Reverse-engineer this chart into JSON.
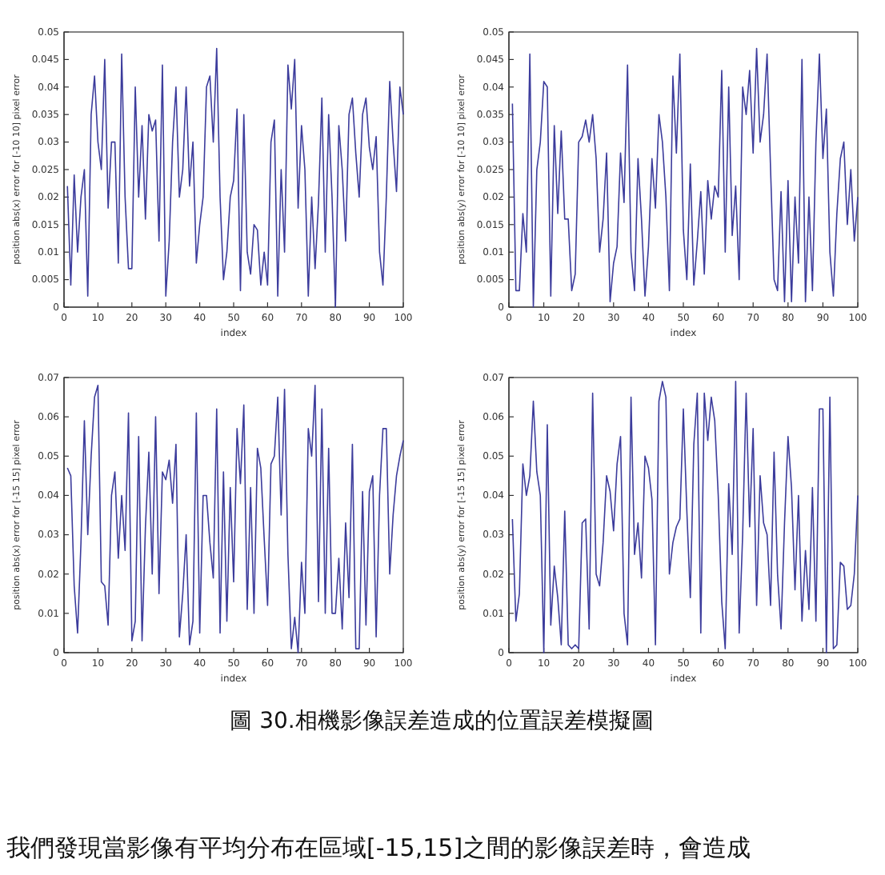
{
  "chart_data": [
    {
      "type": "line",
      "x": [
        1,
        2,
        3,
        4,
        5,
        6,
        7,
        8,
        9,
        10,
        11,
        12,
        13,
        14,
        15,
        16,
        17,
        18,
        19,
        20,
        21,
        22,
        23,
        24,
        25,
        26,
        27,
        28,
        29,
        30,
        31,
        32,
        33,
        34,
        35,
        36,
        37,
        38,
        39,
        40,
        41,
        42,
        43,
        44,
        45,
        46,
        47,
        48,
        49,
        50,
        51,
        52,
        53,
        54,
        55,
        56,
        57,
        58,
        59,
        60,
        61,
        62,
        63,
        64,
        65,
        66,
        67,
        68,
        69,
        70,
        71,
        72,
        73,
        74,
        75,
        76,
        77,
        78,
        79,
        80,
        81,
        82,
        83,
        84,
        85,
        86,
        87,
        88,
        89,
        90,
        91,
        92,
        93,
        94,
        95,
        96,
        97,
        98,
        99,
        100
      ],
      "xlabel": "index",
      "ylabel": "position abs(x) error for [-10 10] pixel error",
      "xlim": [
        0,
        100
      ],
      "xticks": [
        0,
        10,
        20,
        30,
        40,
        50,
        60,
        70,
        80,
        90,
        100
      ],
      "ylim": [
        0,
        0.05
      ],
      "yticks": [
        0,
        0.005,
        0.01,
        0.015,
        0.02,
        0.025,
        0.03,
        0.035,
        0.04,
        0.045,
        0.05
      ],
      "series": [
        {
          "color": "#3c3c9c",
          "values": [
            0.022,
            0.004,
            0.024,
            0.01,
            0.02,
            0.025,
            0.002,
            0.035,
            0.042,
            0.03,
            0.025,
            0.045,
            0.018,
            0.03,
            0.03,
            0.008,
            0.046,
            0.02,
            0.007,
            0.007,
            0.04,
            0.02,
            0.033,
            0.016,
            0.035,
            0.032,
            0.034,
            0.012,
            0.044,
            0.002,
            0.012,
            0.03,
            0.04,
            0.02,
            0.025,
            0.04,
            0.022,
            0.03,
            0.008,
            0.015,
            0.02,
            0.04,
            0.042,
            0.03,
            0.047,
            0.02,
            0.005,
            0.01,
            0.02,
            0.023,
            0.036,
            0.003,
            0.035,
            0.01,
            0.006,
            0.015,
            0.014,
            0.004,
            0.01,
            0.004,
            0.03,
            0.034,
            0.002,
            0.025,
            0.01,
            0.044,
            0.036,
            0.045,
            0.018,
            0.033,
            0.025,
            0.002,
            0.02,
            0.007,
            0.019,
            0.038,
            0.01,
            0.035,
            0.02,
            0.0,
            0.033,
            0.025,
            0.012,
            0.035,
            0.038,
            0.028,
            0.02,
            0.035,
            0.038,
            0.029,
            0.025,
            0.031,
            0.01,
            0.004,
            0.02,
            0.041,
            0.03,
            0.021,
            0.04,
            0.035
          ]
        }
      ]
    },
    {
      "type": "line",
      "x": [
        1,
        2,
        3,
        4,
        5,
        6,
        7,
        8,
        9,
        10,
        11,
        12,
        13,
        14,
        15,
        16,
        17,
        18,
        19,
        20,
        21,
        22,
        23,
        24,
        25,
        26,
        27,
        28,
        29,
        30,
        31,
        32,
        33,
        34,
        35,
        36,
        37,
        38,
        39,
        40,
        41,
        42,
        43,
        44,
        45,
        46,
        47,
        48,
        49,
        50,
        51,
        52,
        53,
        54,
        55,
        56,
        57,
        58,
        59,
        60,
        61,
        62,
        63,
        64,
        65,
        66,
        67,
        68,
        69,
        70,
        71,
        72,
        73,
        74,
        75,
        76,
        77,
        78,
        79,
        80,
        81,
        82,
        83,
        84,
        85,
        86,
        87,
        88,
        89,
        90,
        91,
        92,
        93,
        94,
        95,
        96,
        97,
        98,
        99,
        100
      ],
      "xlabel": "index",
      "ylabel": "position abs(y) error for [-10 10] pixel error",
      "xlim": [
        0,
        100
      ],
      "xticks": [
        0,
        10,
        20,
        30,
        40,
        50,
        60,
        70,
        80,
        90,
        100
      ],
      "ylim": [
        0,
        0.05
      ],
      "yticks": [
        0,
        0.005,
        0.01,
        0.015,
        0.02,
        0.025,
        0.03,
        0.035,
        0.04,
        0.045,
        0.05
      ],
      "series": [
        {
          "color": "#3c3c9c",
          "values": [
            0.037,
            0.003,
            0.003,
            0.017,
            0.01,
            0.046,
            0.0,
            0.025,
            0.03,
            0.041,
            0.04,
            0.002,
            0.033,
            0.017,
            0.032,
            0.016,
            0.016,
            0.003,
            0.006,
            0.03,
            0.031,
            0.034,
            0.03,
            0.035,
            0.027,
            0.01,
            0.016,
            0.028,
            0.001,
            0.008,
            0.011,
            0.028,
            0.019,
            0.044,
            0.01,
            0.003,
            0.027,
            0.016,
            0.002,
            0.011,
            0.027,
            0.018,
            0.035,
            0.03,
            0.02,
            0.003,
            0.042,
            0.028,
            0.046,
            0.014,
            0.005,
            0.026,
            0.004,
            0.012,
            0.021,
            0.006,
            0.023,
            0.016,
            0.022,
            0.02,
            0.043,
            0.01,
            0.04,
            0.013,
            0.022,
            0.005,
            0.04,
            0.035,
            0.043,
            0.028,
            0.047,
            0.03,
            0.035,
            0.046,
            0.025,
            0.005,
            0.003,
            0.021,
            0.001,
            0.023,
            0.001,
            0.02,
            0.008,
            0.045,
            0.001,
            0.02,
            0.003,
            0.03,
            0.046,
            0.027,
            0.036,
            0.01,
            0.002,
            0.017,
            0.027,
            0.03,
            0.015,
            0.025,
            0.012,
            0.02
          ]
        }
      ]
    },
    {
      "type": "line",
      "x": [
        1,
        2,
        3,
        4,
        5,
        6,
        7,
        8,
        9,
        10,
        11,
        12,
        13,
        14,
        15,
        16,
        17,
        18,
        19,
        20,
        21,
        22,
        23,
        24,
        25,
        26,
        27,
        28,
        29,
        30,
        31,
        32,
        33,
        34,
        35,
        36,
        37,
        38,
        39,
        40,
        41,
        42,
        43,
        44,
        45,
        46,
        47,
        48,
        49,
        50,
        51,
        52,
        53,
        54,
        55,
        56,
        57,
        58,
        59,
        60,
        61,
        62,
        63,
        64,
        65,
        66,
        67,
        68,
        69,
        70,
        71,
        72,
        73,
        74,
        75,
        76,
        77,
        78,
        79,
        80,
        81,
        82,
        83,
        84,
        85,
        86,
        87,
        88,
        89,
        90,
        91,
        92,
        93,
        94,
        95,
        96,
        97,
        98,
        99,
        100
      ],
      "xlabel": "index",
      "ylabel": "position abs(x) error for [-15 15] pixel error",
      "xlim": [
        0,
        100
      ],
      "xticks": [
        0,
        10,
        20,
        30,
        40,
        50,
        60,
        70,
        80,
        90,
        100
      ],
      "ylim": [
        0,
        0.07
      ],
      "yticks": [
        0,
        0.01,
        0.02,
        0.03,
        0.04,
        0.05,
        0.06,
        0.07
      ],
      "series": [
        {
          "color": "#3c3c9c",
          "values": [
            0.047,
            0.045,
            0.017,
            0.005,
            0.028,
            0.059,
            0.03,
            0.05,
            0.065,
            0.068,
            0.018,
            0.017,
            0.007,
            0.04,
            0.046,
            0.024,
            0.04,
            0.026,
            0.061,
            0.003,
            0.008,
            0.055,
            0.003,
            0.032,
            0.051,
            0.02,
            0.06,
            0.015,
            0.046,
            0.044,
            0.049,
            0.038,
            0.053,
            0.004,
            0.015,
            0.03,
            0.002,
            0.008,
            0.061,
            0.005,
            0.04,
            0.04,
            0.028,
            0.019,
            0.062,
            0.005,
            0.046,
            0.008,
            0.042,
            0.018,
            0.057,
            0.043,
            0.063,
            0.011,
            0.042,
            0.01,
            0.052,
            0.047,
            0.029,
            0.012,
            0.048,
            0.05,
            0.065,
            0.035,
            0.067,
            0.025,
            0.001,
            0.009,
            0.0,
            0.023,
            0.01,
            0.057,
            0.05,
            0.068,
            0.013,
            0.062,
            0.01,
            0.052,
            0.01,
            0.01,
            0.024,
            0.006,
            0.033,
            0.014,
            0.053,
            0.001,
            0.001,
            0.041,
            0.007,
            0.041,
            0.045,
            0.004,
            0.04,
            0.057,
            0.057,
            0.02,
            0.035,
            0.045,
            0.05,
            0.054
          ]
        }
      ]
    },
    {
      "type": "line",
      "x": [
        1,
        2,
        3,
        4,
        5,
        6,
        7,
        8,
        9,
        10,
        11,
        12,
        13,
        14,
        15,
        16,
        17,
        18,
        19,
        20,
        21,
        22,
        23,
        24,
        25,
        26,
        27,
        28,
        29,
        30,
        31,
        32,
        33,
        34,
        35,
        36,
        37,
        38,
        39,
        40,
        41,
        42,
        43,
        44,
        45,
        46,
        47,
        48,
        49,
        50,
        51,
        52,
        53,
        54,
        55,
        56,
        57,
        58,
        59,
        60,
        61,
        62,
        63,
        64,
        65,
        66,
        67,
        68,
        69,
        70,
        71,
        72,
        73,
        74,
        75,
        76,
        77,
        78,
        79,
        80,
        81,
        82,
        83,
        84,
        85,
        86,
        87,
        88,
        89,
        90,
        91,
        92,
        93,
        94,
        95,
        96,
        97,
        98,
        99,
        100
      ],
      "xlabel": "index",
      "ylabel": "position abs(y) error for [-15 15] pixel error",
      "xlim": [
        0,
        100
      ],
      "xticks": [
        0,
        10,
        20,
        30,
        40,
        50,
        60,
        70,
        80,
        90,
        100
      ],
      "ylim": [
        0,
        0.07
      ],
      "yticks": [
        0,
        0.01,
        0.02,
        0.03,
        0.04,
        0.05,
        0.06,
        0.07
      ],
      "annotations": [
        "圖 30.相機影像誤差造成的位置誤差模擬圖",
        "我們發現當影像有平均分布在區域[-15,15]之間的影像誤差時，會造成"
      ],
      "series": [
        {
          "color": "#3c3c9c",
          "values": [
            0.034,
            0.008,
            0.015,
            0.048,
            0.04,
            0.045,
            0.064,
            0.046,
            0.04,
            0.0,
            0.058,
            0.007,
            0.022,
            0.014,
            0.002,
            0.036,
            0.002,
            0.001,
            0.002,
            0.001,
            0.033,
            0.034,
            0.006,
            0.066,
            0.02,
            0.017,
            0.028,
            0.045,
            0.041,
            0.031,
            0.048,
            0.055,
            0.01,
            0.002,
            0.065,
            0.025,
            0.033,
            0.019,
            0.05,
            0.047,
            0.039,
            0.002,
            0.064,
            0.069,
            0.065,
            0.02,
            0.028,
            0.032,
            0.034,
            0.062,
            0.036,
            0.014,
            0.053,
            0.066,
            0.005,
            0.066,
            0.054,
            0.065,
            0.059,
            0.04,
            0.013,
            0.001,
            0.043,
            0.025,
            0.069,
            0.005,
            0.03,
            0.066,
            0.032,
            0.057,
            0.012,
            0.045,
            0.033,
            0.03,
            0.012,
            0.051,
            0.02,
            0.006,
            0.033,
            0.055,
            0.042,
            0.016,
            0.04,
            0.008,
            0.026,
            0.011,
            0.042,
            0.008,
            0.062,
            0.062,
            0.0,
            0.065,
            0.001,
            0.002,
            0.023,
            0.022,
            0.011,
            0.012,
            0.02,
            0.04
          ]
        }
      ]
    }
  ]
}
